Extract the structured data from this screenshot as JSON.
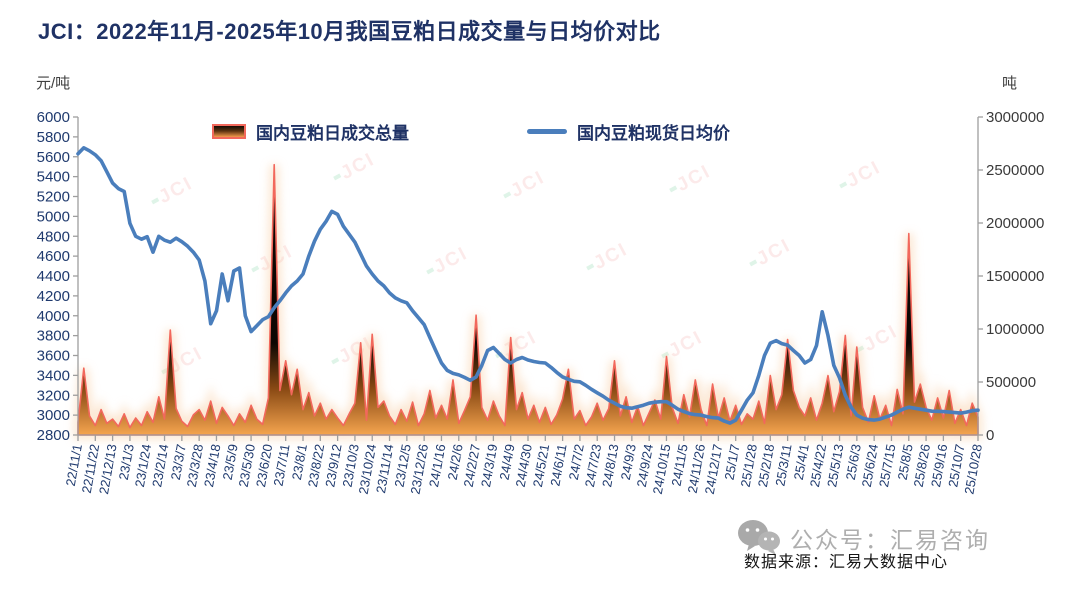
{
  "title": "JCI：2022年11月-2025年10月我国豆粕日成交量与日均价对比",
  "axis_left_unit": "元/吨",
  "axis_right_unit": "吨",
  "legend": {
    "volume_label": "国内豆粕日成交总量",
    "price_label": "国内豆粕现货日均价"
  },
  "source": "数据来源：汇易大数据中心",
  "watermark_footer": "公众号：汇易咨询",
  "watermark_logo": {
    "text": "JCI"
  },
  "colors": {
    "title_text": "#1f3265",
    "axis_left_text": "#1f3a6e",
    "axis_right_text": "#3a3a3a",
    "axis_line": "#9e9e9e",
    "line": "#4a7ebc",
    "area_top": "#0d0602",
    "area_mid": "#8a4a14",
    "area_base": "#f5a54f",
    "area_stroke": "#f2685c",
    "area_glow": "#f8cfa6"
  },
  "chart_data": {
    "type": "combo-area-line",
    "title": "JCI：2022年11月-2025年10月我国豆粕日成交量与日均价对比",
    "xlabel": "",
    "ylabel_left": "元/吨",
    "ylabel_right": "吨",
    "grid": false,
    "legend_position": "top-center",
    "left_axis": {
      "min": 2800,
      "max": 6000,
      "step": 200
    },
    "right_axis": {
      "min": 0,
      "max": 3000000,
      "step": 500000
    },
    "points_per_tick": 3,
    "x_tick_labels": [
      "22/11/1",
      "22/11/22",
      "22/12/13",
      "23/1/3",
      "23/1/24",
      "23/2/14",
      "23/3/7",
      "23/3/28",
      "23/4/18",
      "23/5/9",
      "23/5/30",
      "23/6/20",
      "23/7/11",
      "23/8/1",
      "23/8/22",
      "23/9/12",
      "23/10/3",
      "23/10/24",
      "23/11/14",
      "23/12/5",
      "23/12/26",
      "24/1/16",
      "24/2/6",
      "24/2/27",
      "24/3/19",
      "24/4/9",
      "24/4/30",
      "24/5/21",
      "24/6/11",
      "24/7/2",
      "24/7/23",
      "24/8/13",
      "24/9/3",
      "24/9/24",
      "24/10/15",
      "24/11/5",
      "24/11/26",
      "24/12/17",
      "25/1/7",
      "25/1/28",
      "25/2/18",
      "25/3/11",
      "25/4/1",
      "25/4/22",
      "25/5/13",
      "25/6/3",
      "25/6/24",
      "25/7/15",
      "25/8/5",
      "25/8/26",
      "25/9/16",
      "25/10/7",
      "25/10/28"
    ],
    "series": [
      {
        "name": "国内豆粕日成交总量",
        "axis": "right",
        "render": "area-spike",
        "values": [
          120000,
          630000,
          180000,
          90000,
          240000,
          110000,
          150000,
          80000,
          200000,
          70000,
          160000,
          90000,
          220000,
          120000,
          360000,
          150000,
          990000,
          250000,
          130000,
          80000,
          190000,
          240000,
          140000,
          320000,
          110000,
          260000,
          180000,
          90000,
          200000,
          120000,
          280000,
          150000,
          100000,
          350000,
          2550000,
          420000,
          700000,
          380000,
          620000,
          240000,
          400000,
          180000,
          300000,
          150000,
          240000,
          160000,
          90000,
          200000,
          300000,
          870000,
          140000,
          950000,
          260000,
          320000,
          180000,
          100000,
          240000,
          130000,
          310000,
          90000,
          200000,
          420000,
          160000,
          280000,
          150000,
          520000,
          110000,
          230000,
          360000,
          1130000,
          260000,
          140000,
          320000,
          180000,
          90000,
          920000,
          240000,
          400000,
          150000,
          280000,
          120000,
          260000,
          100000,
          190000,
          340000,
          620000,
          150000,
          230000,
          90000,
          170000,
          300000,
          140000,
          250000,
          700000,
          180000,
          360000,
          120000,
          270000,
          90000,
          210000,
          330000,
          150000,
          740000,
          260000,
          110000,
          380000,
          170000,
          520000,
          240000,
          90000,
          480000,
          160000,
          350000,
          130000,
          280000,
          100000,
          200000,
          150000,
          320000,
          110000,
          560000,
          240000,
          380000,
          900000,
          420000,
          260000,
          180000,
          350000,
          140000,
          300000,
          560000,
          220000,
          410000,
          940000,
          180000,
          830000,
          260000,
          120000,
          370000,
          150000,
          280000,
          90000,
          430000,
          200000,
          1900000,
          310000,
          480000,
          260000,
          140000,
          350000,
          160000,
          420000,
          110000,
          240000,
          90000,
          300000,
          170000
        ]
      },
      {
        "name": "国内豆粕现货日均价",
        "axis": "left",
        "render": "line",
        "values": [
          5630,
          5690,
          5660,
          5620,
          5560,
          5450,
          5335,
          5280,
          5250,
          4930,
          4800,
          4770,
          4795,
          4640,
          4800,
          4760,
          4740,
          4780,
          4745,
          4700,
          4640,
          4560,
          4350,
          3920,
          4050,
          4420,
          4150,
          4450,
          4480,
          4000,
          3840,
          3900,
          3960,
          3990,
          4080,
          4150,
          4230,
          4300,
          4350,
          4420,
          4600,
          4750,
          4870,
          4950,
          5050,
          5020,
          4900,
          4820,
          4740,
          4620,
          4500,
          4420,
          4350,
          4300,
          4230,
          4180,
          4150,
          4130,
          4050,
          3980,
          3910,
          3780,
          3650,
          3525,
          3450,
          3420,
          3405,
          3380,
          3350,
          3385,
          3500,
          3650,
          3680,
          3620,
          3560,
          3525,
          3560,
          3580,
          3555,
          3540,
          3530,
          3525,
          3480,
          3430,
          3385,
          3360,
          3340,
          3335,
          3300,
          3260,
          3225,
          3190,
          3150,
          3120,
          3090,
          3075,
          3070,
          3085,
          3100,
          3120,
          3130,
          3135,
          3135,
          3100,
          3060,
          3035,
          3015,
          3005,
          3000,
          2985,
          2975,
          2970,
          2940,
          2920,
          2950,
          3050,
          3150,
          3225,
          3400,
          3600,
          3725,
          3750,
          3720,
          3705,
          3650,
          3600,
          3525,
          3560,
          3700,
          4040,
          3800,
          3500,
          3375,
          3200,
          3080,
          3000,
          2970,
          2955,
          2950,
          2960,
          2980,
          3000,
          3030,
          3060,
          3080,
          3070,
          3060,
          3050,
          3040,
          3038,
          3035,
          3030,
          3025,
          3020,
          3030,
          3045,
          3050
        ]
      }
    ]
  }
}
